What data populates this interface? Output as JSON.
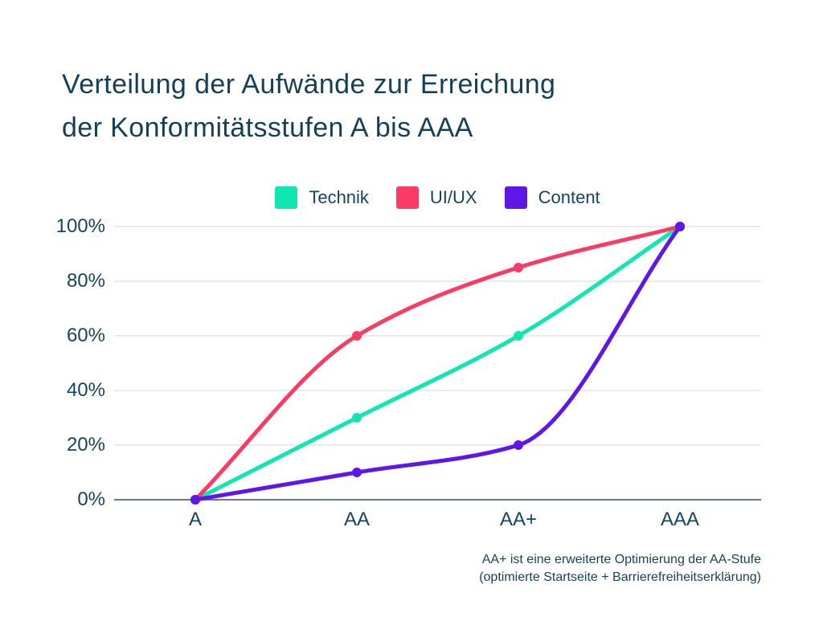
{
  "page": {
    "background": "#ffffff"
  },
  "title": {
    "line1": "Verteilung der Aufwände zur Erreichung",
    "line2": "der Konformitätsstufen A bis AAA"
  },
  "legend": {
    "items": [
      {
        "label": "Technik",
        "color": "#10e7b0"
      },
      {
        "label": "UI/UX",
        "color": "#fa3c64"
      },
      {
        "label": "Content",
        "color": "#5f17e8"
      }
    ]
  },
  "chart_data": {
    "type": "line",
    "curve": "monotone",
    "categories": [
      "A",
      "AA",
      "AA+",
      "AAA"
    ],
    "series": [
      {
        "name": "Technik",
        "color": "#10e7b0",
        "values": [
          0,
          30,
          60,
          100
        ]
      },
      {
        "name": "UI/UX",
        "color": "#fa3c64",
        "values": [
          0,
          60,
          85,
          100
        ]
      },
      {
        "name": "Content",
        "color": "#5f17e8",
        "values": [
          0,
          10,
          20,
          100
        ]
      }
    ],
    "yticks": [
      {
        "label": "100%",
        "value": 100
      },
      {
        "label": "80%",
        "value": 80
      },
      {
        "label": "60%",
        "value": 60
      },
      {
        "label": "40%",
        "value": 40
      },
      {
        "label": "20%",
        "value": 20
      },
      {
        "label": "0%",
        "value": 0
      }
    ],
    "ylim": [
      0,
      100
    ],
    "grid": true,
    "legend_position": "top"
  },
  "footnote": {
    "line1": "AA+ ist eine erweiterte Optimierung der AA-Stufe",
    "line2": "(optimierte Startseite + Barrierefreiheitserklärung)"
  },
  "colors": {
    "text": "#17455c",
    "title_text": "#153f55",
    "grid_line": "#e0e5e9",
    "axis_line": "#5f7d8c"
  }
}
